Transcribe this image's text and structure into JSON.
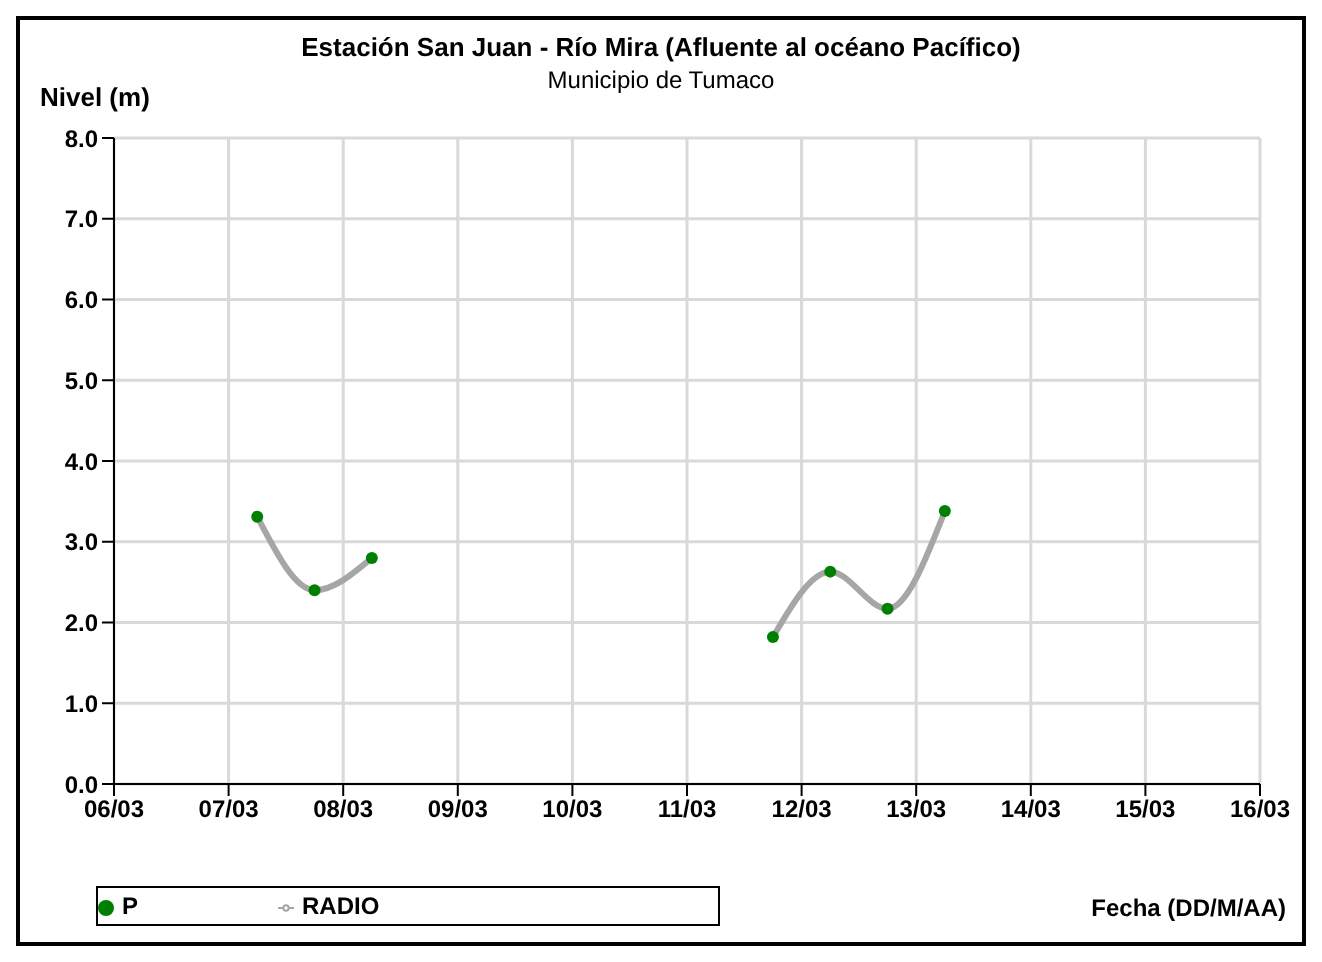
{
  "chart_data": {
    "type": "line",
    "title": "Estación San Juan  - Río Mira (Afluente al océano Pacífico)",
    "subtitle": "Municipio de Tumaco",
    "ylabel": "Nivel (m)",
    "xlabel": "Fecha (DD/M/AA)",
    "x": [
      "--03-07T06:00",
      "--03-07T18:00",
      "--03-08T06:00",
      "--03-10",
      "--03-11T18:00",
      "--03-12T06:00",
      "--03-12T18:00",
      "--03-13T06:00"
    ],
    "series": [
      {
        "name": "P",
        "type": "scatter",
        "marker": "circle",
        "color": "#008000",
        "values": [
          3.31,
          2.4,
          2.8,
          null,
          1.82,
          2.63,
          2.17,
          3.38
        ]
      },
      {
        "name": "RADIO",
        "marker": "none",
        "color": "#a6a6a6",
        "values": [
          3.31,
          2.4,
          2.8,
          null,
          1.82,
          2.63,
          2.17,
          3.38
        ]
      }
    ],
    "xlim": [
      "--03-06",
      "--03-16"
    ],
    "xticks": [
      {
        "value": "--03-06",
        "label": "06/03"
      },
      {
        "value": "--03-07",
        "label": "07/03"
      },
      {
        "value": "--03-08",
        "label": "08/03"
      },
      {
        "value": "--03-09",
        "label": "09/03"
      },
      {
        "value": "--03-10",
        "label": "10/03"
      },
      {
        "value": "--03-11",
        "label": "11/03"
      },
      {
        "value": "--03-12",
        "label": "12/03"
      },
      {
        "value": "--03-13",
        "label": "13/03"
      },
      {
        "value": "--03-14",
        "label": "14/03"
      },
      {
        "value": "--03-15",
        "label": "15/03"
      },
      {
        "value": "--03-16",
        "label": "16/03"
      }
    ],
    "ylim": [
      0,
      8
    ],
    "yticks": [
      {
        "value": 0,
        "label": "0.0"
      },
      {
        "value": 1,
        "label": "1.0"
      },
      {
        "value": 2,
        "label": "2.0"
      },
      {
        "value": 3,
        "label": "3.0"
      },
      {
        "value": 4,
        "label": "4.0"
      },
      {
        "value": 5,
        "label": "5.0"
      },
      {
        "value": 6,
        "label": "6.0"
      },
      {
        "value": 7,
        "label": "7.0"
      },
      {
        "value": 8,
        "label": "8.0"
      }
    ],
    "grid": true,
    "legend": "bottom left"
  }
}
